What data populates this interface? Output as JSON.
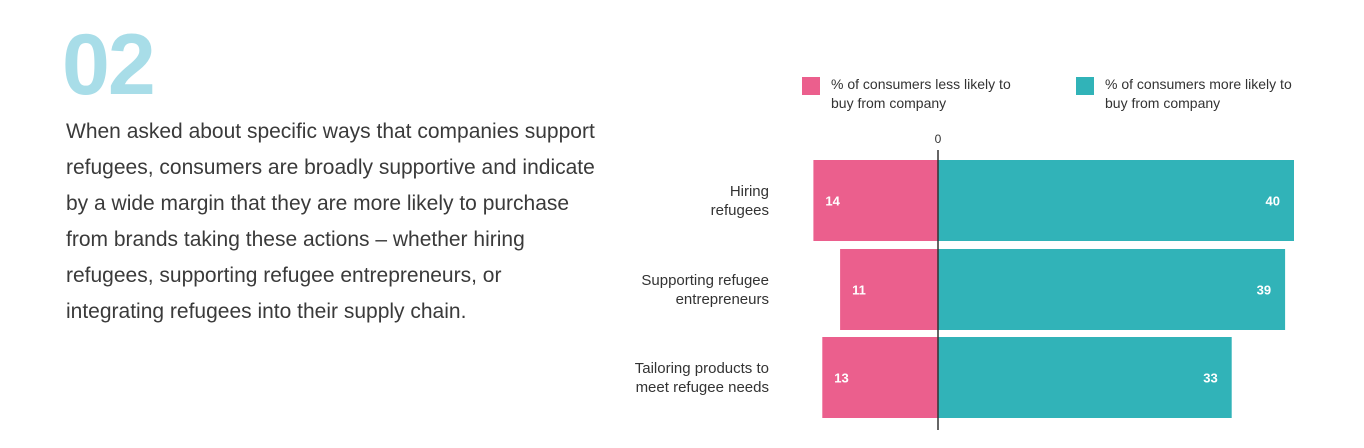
{
  "section_number": "02",
  "body_text": "When asked about specific ways that companies support refugees, consumers are broadly supportive and indicate by a wide margin that they are more likely to purchase from brands taking these actions – whether hiring refugees, supporting refugee entrepreneurs, or integrating refugees into their supply chain.",
  "colors": {
    "less": "#eb5f8d",
    "more": "#31b3b8",
    "section_number": "#a8dde8"
  },
  "chart_data": {
    "type": "bar",
    "orientation": "horizontal-diverging",
    "categories": [
      [
        "Hiring",
        "refugees"
      ],
      [
        "Supporting refugee",
        "entrepreneurs"
      ],
      [
        "Tailoring products to",
        "meet refugee needs"
      ]
    ],
    "series": [
      {
        "name": "% of consumers less likely to buy from company",
        "values": [
          14,
          11,
          13
        ]
      },
      {
        "name": "% of consumers more likely to buy from company",
        "values": [
          40,
          39,
          33
        ]
      }
    ],
    "zero_label": "0",
    "legend_position": "top",
    "grid": false
  }
}
